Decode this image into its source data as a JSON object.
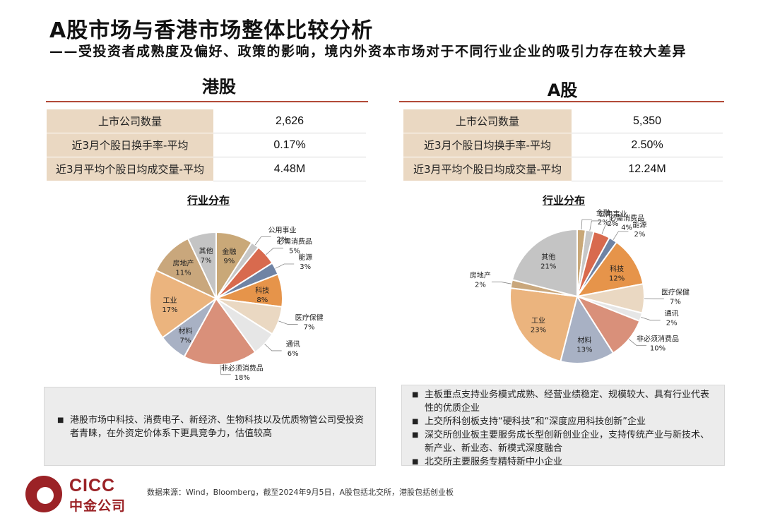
{
  "header": {
    "title": "A股市场与香港市场整体比较分析",
    "subtitle": "——受投资者成熟度及偏好、政策的影响，境内外资本市场对于不同行业企业的吸引力存在较大差异"
  },
  "hk": {
    "title": "港股",
    "rows": [
      {
        "label": "上市公司数量",
        "value": "2,626"
      },
      {
        "label": "近3月个股日换手率-平均",
        "value": "0.17%"
      },
      {
        "label": "近3月平均个股日均成交量-平均",
        "value": "4.48M"
      }
    ],
    "chart_title": "行业分布",
    "note_items": [
      "港股市场中科技、消费电子、新经济、生物科技以及优质物管公司受投资者青睐，在外资定价体系下更具竞争力，估值较高"
    ]
  },
  "a": {
    "title": "A股",
    "rows": [
      {
        "label": "上市公司数量",
        "value": "5,350"
      },
      {
        "label": "近3月个股日均换手率-平均",
        "value": "2.50%"
      },
      {
        "label": "近3月平均个股日均成交量-平均",
        "value": "12.24M"
      }
    ],
    "chart_title": "行业分布",
    "note_items": [
      "主板重点支持业务模式成熟、经营业绩稳定、规模较大、具有行业代表性的优质企业",
      "上交所科创板支持“硬科技”和“深度应用科技创新”企业",
      "深交所创业板主要服务成长型创新创业企业，支持传统产业与新技术、新产业、新业态、新模式深度融合",
      "北交所主要服务专精特新中小企业"
    ]
  },
  "chart_data": [
    {
      "type": "pie",
      "title": "行业分布",
      "categories": [
        "金融",
        "公用事业",
        "必需消费品",
        "能源",
        "科技",
        "医疗保健",
        "通讯",
        "非必须消费品",
        "材料",
        "工业",
        "房地产",
        "其他"
      ],
      "values": [
        9,
        2,
        5,
        3,
        8,
        7,
        6,
        18,
        7,
        17,
        11,
        7
      ],
      "labels": [
        "9%",
        "2%",
        "5%",
        "3%",
        "8%",
        "7%",
        "6%",
        "18%",
        "7%",
        "17%",
        "11%",
        "7%"
      ]
    },
    {
      "type": "pie",
      "title": "行业分布",
      "categories": [
        "金融",
        "公用事业",
        "必需消费品",
        "能源",
        "科技",
        "医疗保健",
        "通讯",
        "非必须消费品",
        "材料",
        "工业",
        "房地产",
        "其他"
      ],
      "values": [
        2,
        2,
        4,
        2,
        12,
        7,
        2,
        10,
        13,
        23,
        2,
        21
      ],
      "labels": [
        "2%",
        "2%",
        "4%",
        "2%",
        "12%",
        "7%",
        "2%",
        "10%",
        "13%",
        "23%",
        "2%",
        "21%"
      ]
    }
  ],
  "colors": [
    "#c9a878",
    "#c7c7c7",
    "#d86a4e",
    "#6f83a4",
    "#e6944a",
    "#ead8c2",
    "#e6e6e6",
    "#d9907a",
    "#a8b1c4",
    "#ebb47e",
    "#c9a77c",
    "#c4c4c4"
  ],
  "footer": {
    "source": "数据来源：Wind，Bloomberg，截至2024年9月5日，A股包括北交所，港股包括创业板",
    "logo_en": "CICC",
    "logo_cn": "中金公司"
  }
}
